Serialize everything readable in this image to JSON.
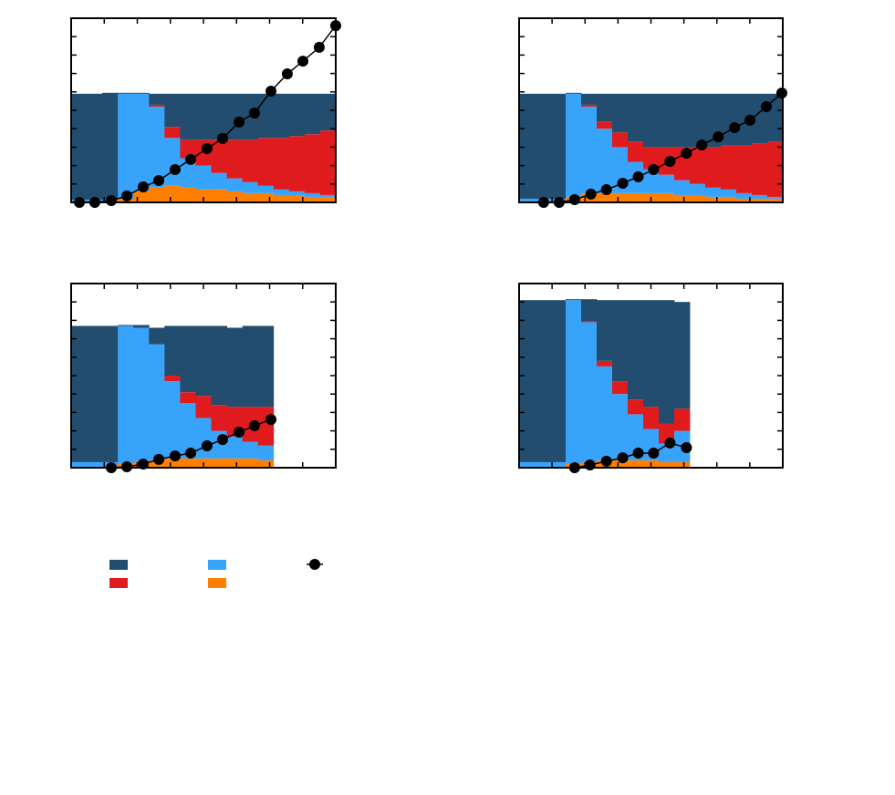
{
  "chart_data": [
    {
      "type": "stacked-bar-line",
      "xlim": [
        0,
        17
      ],
      "xticks": [
        0,
        2.125,
        4.25,
        6.375,
        8.5,
        10.625,
        12.75,
        14.875,
        17
      ],
      "ylim": [
        0,
        100
      ],
      "yticks": [
        0,
        10,
        20,
        30,
        40,
        50,
        60,
        70,
        80,
        90,
        100
      ],
      "x": [
        0.5,
        1.5,
        2.5,
        3.5,
        4.5,
        5.5,
        6.5,
        7.5,
        8.5,
        9.5,
        10.5,
        11.5,
        12.5,
        13.5,
        14.5,
        15.5,
        16.5
      ],
      "series": [
        {
          "color": "#ff8000",
          "values": [
            0,
            0,
            0,
            2,
            6,
            8,
            9,
            8,
            7,
            7,
            6,
            5,
            5,
            4,
            4,
            3,
            3
          ]
        },
        {
          "color": "#38a3fb",
          "values": [
            1.5,
            1.5,
            1.5,
            57,
            53,
            44,
            26,
            16,
            13,
            9,
            7,
            6,
            4,
            3,
            2,
            2,
            1
          ]
        },
        {
          "color": "#e01b1e",
          "values": [
            0,
            0,
            0,
            0,
            0,
            1,
            6,
            10,
            14,
            18,
            21,
            23,
            26,
            28,
            30,
            32,
            35
          ]
        },
        {
          "color": "#234d6e",
          "values": [
            57.5,
            57.5,
            58,
            0.5,
            0.5,
            6,
            18,
            25,
            25,
            25,
            25,
            25,
            24,
            24,
            23,
            22,
            20
          ]
        }
      ],
      "line": {
        "color": "#000000",
        "x": [
          0.53,
          1.52,
          2.58,
          3.58,
          4.63,
          5.63,
          6.68,
          7.68,
          8.73,
          9.73,
          10.79,
          11.78,
          12.84,
          13.89,
          14.89,
          15.94,
          17
        ],
        "values": [
          0,
          0,
          1,
          3.5,
          8.4,
          11.9,
          17.8,
          23.3,
          29.2,
          34.7,
          43.6,
          48.5,
          60.4,
          69.8,
          76.7,
          84.2,
          96
        ]
      }
    },
    {
      "type": "stacked-bar-line",
      "xlim": [
        0,
        17
      ],
      "xticks": [
        0,
        2.125,
        4.25,
        6.375,
        8.5,
        10.625,
        12.75,
        14.875,
        17
      ],
      "ylim": [
        0,
        100
      ],
      "yticks": [
        0,
        10,
        20,
        30,
        40,
        50,
        60,
        70,
        80,
        90,
        100
      ],
      "x": [
        0.5,
        1.5,
        2.5,
        3.5,
        4.5,
        5.5,
        6.5,
        7.5,
        8.5,
        9.5,
        10.5,
        11.5,
        12.5,
        13.5,
        14.5,
        15.5,
        16.5
      ],
      "series": [
        {
          "color": "#ff8000",
          "values": [
            0,
            0,
            0,
            3,
            5,
            5,
            5,
            5,
            5,
            5,
            4,
            4,
            3,
            3,
            2,
            2,
            2
          ]
        },
        {
          "color": "#38a3fb",
          "values": [
            2,
            2,
            2,
            56,
            47,
            35,
            25,
            17,
            13,
            10,
            8,
            6,
            5,
            4,
            3,
            2,
            1
          ]
        },
        {
          "color": "#e01b1e",
          "values": [
            0,
            0,
            0,
            0,
            1,
            4,
            8,
            11,
            12,
            15,
            18,
            20,
            22,
            24,
            26,
            28,
            30
          ]
        },
        {
          "color": "#234d6e",
          "values": [
            57,
            57,
            57,
            0.5,
            6,
            15,
            21,
            26,
            29,
            29,
            29,
            29,
            29,
            28,
            28,
            27,
            26
          ]
        }
      ],
      "line": {
        "color": "#000000",
        "x": [
          1.58,
          2.58,
          3.58,
          4.63,
          5.63,
          6.68,
          7.68,
          8.67,
          9.73,
          10.79,
          11.78,
          12.84,
          13.89,
          14.89,
          15.94,
          16.94
        ],
        "values": [
          0,
          0,
          1.5,
          4.5,
          6.9,
          10.4,
          13.9,
          17.8,
          22.3,
          26.7,
          31.2,
          35.6,
          40.6,
          44.6,
          52,
          59.4
        ]
      }
    },
    {
      "type": "stacked-bar-line",
      "xlim": [
        0,
        17
      ],
      "xticks": [
        0,
        2.125,
        4.25,
        6.375,
        8.5,
        10.625,
        12.75,
        14.875,
        17
      ],
      "ylim": [
        0,
        100
      ],
      "yticks": [
        0,
        10,
        20,
        30,
        40,
        50,
        60,
        70,
        80,
        90,
        100
      ],
      "x": [
        0.5,
        1.5,
        2.5,
        3.5,
        4.5,
        5.5,
        6.5,
        7.5,
        8.5,
        9.5,
        10.5,
        11.5,
        12.5
      ],
      "series": [
        {
          "color": "#ff8000",
          "values": [
            0,
            0,
            0,
            2,
            3,
            4,
            5,
            5,
            5,
            5,
            5,
            5,
            4
          ]
        },
        {
          "color": "#38a3fb",
          "values": [
            3,
            3,
            3,
            75,
            73,
            63,
            42,
            30,
            22,
            15,
            12,
            9,
            8
          ]
        },
        {
          "color": "#e01b1e",
          "values": [
            0,
            0,
            0,
            0,
            0,
            0,
            3,
            6,
            12,
            14,
            16,
            19,
            21
          ]
        },
        {
          "color": "#234d6e",
          "values": [
            74,
            74,
            74,
            0.5,
            1.5,
            9,
            27,
            36,
            38,
            43,
            43,
            44,
            44
          ]
        }
      ],
      "line": {
        "color": "#000000",
        "x": [
          2.58,
          3.58,
          4.63,
          5.63,
          6.68,
          7.68,
          8.73,
          9.73,
          10.79,
          11.78,
          12.84
        ],
        "values": [
          0,
          0.5,
          2,
          4.5,
          6.4,
          7.9,
          11.9,
          15.3,
          19.3,
          22.8,
          26.2
        ]
      }
    },
    {
      "type": "stacked-bar-line",
      "xlim": [
        0,
        17
      ],
      "xticks": [
        0,
        2.125,
        4.25,
        6.375,
        8.5,
        10.625,
        12.75,
        14.875,
        17
      ],
      "ylim": [
        0,
        100
      ],
      "yticks": [
        0,
        10,
        20,
        30,
        40,
        50,
        60,
        70,
        80,
        90,
        100
      ],
      "x": [
        0.5,
        1.5,
        2.5,
        3.5,
        4.5,
        5.5,
        6.5,
        7.5,
        8.5,
        9.5,
        10.5
      ],
      "series": [
        {
          "color": "#ff8000",
          "values": [
            0,
            0,
            0,
            2,
            3,
            4,
            4,
            4,
            4,
            3,
            3
          ]
        },
        {
          "color": "#38a3fb",
          "values": [
            3,
            3,
            3,
            89,
            76,
            51,
            36,
            25,
            17,
            10,
            17
          ]
        },
        {
          "color": "#e01b1e",
          "values": [
            0,
            0,
            0,
            0,
            0.5,
            3,
            7,
            8,
            12,
            11,
            12
          ]
        },
        {
          "color": "#234d6e",
          "values": [
            88,
            88,
            88,
            0.5,
            12,
            33,
            44,
            54,
            58,
            67,
            58
          ]
        }
      ],
      "line": {
        "color": "#000000",
        "x": [
          3.58,
          4.57,
          5.63,
          6.68,
          7.68,
          8.67,
          9.73,
          10.79
        ],
        "values": [
          0,
          1.5,
          3.5,
          5.4,
          7.9,
          7.9,
          13.4,
          10.9
        ]
      }
    }
  ]
}
